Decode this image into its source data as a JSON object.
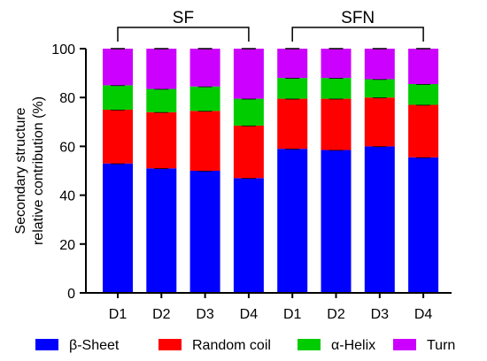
{
  "chart_data": {
    "type": "bar",
    "stacked": true,
    "categories": [
      "D1",
      "D2",
      "D3",
      "D4",
      "D1",
      "D2",
      "D3",
      "D4"
    ],
    "groups": [
      {
        "label": "SF",
        "from": 0,
        "to": 3
      },
      {
        "label": "SFN",
        "from": 4,
        "to": 7
      }
    ],
    "ylabel_line1": "Secondary structure",
    "ylabel_line2": "relative contribution (%)",
    "ylim": [
      0,
      100
    ],
    "yticks": [
      0,
      20,
      40,
      60,
      80,
      100
    ],
    "series": [
      {
        "name": "β-Sheet",
        "color": "#0000ff",
        "values": [
          53,
          51,
          50,
          47,
          59,
          58.5,
          60,
          55.5
        ]
      },
      {
        "name": "Random coil",
        "color": "#ff0000",
        "values": [
          22,
          23,
          24.5,
          21.5,
          20.5,
          21,
          20,
          21.5
        ]
      },
      {
        "name": "α-Helix",
        "color": "#00cc00",
        "values": [
          10,
          9.5,
          10,
          11,
          8.5,
          8.5,
          7.5,
          8.5
        ]
      },
      {
        "name": "Turn",
        "color": "#cc00ff",
        "values": [
          15,
          16.5,
          15.5,
          20.5,
          12,
          12,
          12.5,
          14.5
        ]
      }
    ],
    "legend_position": "bottom"
  }
}
